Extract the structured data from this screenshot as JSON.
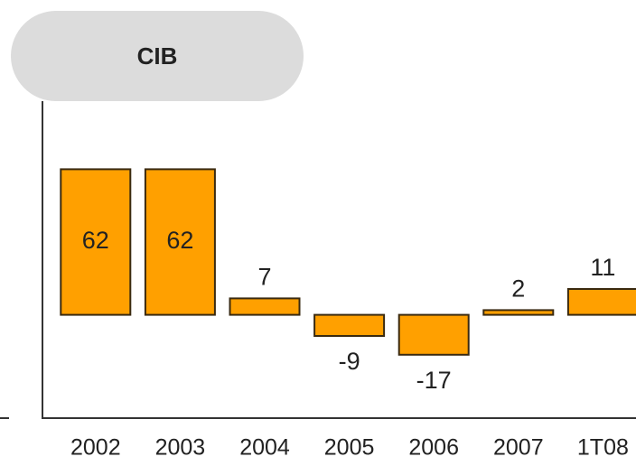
{
  "chart_data": {
    "type": "bar",
    "title": "CIB",
    "categories": [
      "2002",
      "2003",
      "2004",
      "2005",
      "2006",
      "2007",
      "1T08"
    ],
    "values": [
      62,
      62,
      7,
      -9,
      -17,
      2,
      11
    ],
    "color": "#ffa000",
    "ylim": [
      -44,
      91
    ]
  }
}
